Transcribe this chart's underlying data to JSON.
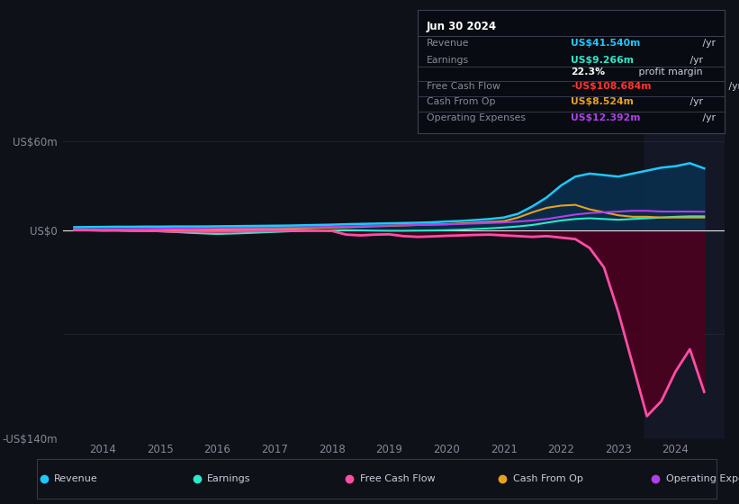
{
  "bg_color": "#0e1117",
  "plot_bg_color": "#0e1117",
  "grid_color": "#2a3040",
  "ylim": [
    -140,
    70
  ],
  "xlim": [
    2013.3,
    2024.85
  ],
  "ytick_vals": [
    -140,
    -70,
    0,
    60
  ],
  "ytick_labels": [
    "-US$140m",
    "",
    "US$0",
    "US$60m"
  ],
  "xtick_vals": [
    2014,
    2015,
    2016,
    2017,
    2018,
    2019,
    2020,
    2021,
    2022,
    2023,
    2024
  ],
  "legend_items": [
    {
      "label": "Revenue",
      "color": "#1ec8ff"
    },
    {
      "label": "Earnings",
      "color": "#2ee8c8"
    },
    {
      "label": "Free Cash Flow",
      "color": "#ff4da6"
    },
    {
      "label": "Cash From Op",
      "color": "#e8a020"
    },
    {
      "label": "Operating Expenses",
      "color": "#b040e8"
    }
  ],
  "table": {
    "title": "Jun 30 2024",
    "rows": [
      {
        "label": "Revenue",
        "value": "US$41.540m",
        "suffix": " /yr",
        "value_color": "#1ec8ff"
      },
      {
        "label": "Earnings",
        "value": "US$9.266m",
        "suffix": " /yr",
        "value_color": "#2ee8c8"
      },
      {
        "label": "",
        "value": "22.3%",
        "suffix": " profit margin",
        "value_color": "#ffffff"
      },
      {
        "label": "Free Cash Flow",
        "value": "-US$108.684m",
        "suffix": " /yr",
        "value_color": "#ff3333"
      },
      {
        "label": "Cash From Op",
        "value": "US$8.524m",
        "suffix": " /yr",
        "value_color": "#e8a020"
      },
      {
        "label": "Operating Expenses",
        "value": "US$12.392m",
        "suffix": " /yr",
        "value_color": "#b040e8"
      }
    ]
  },
  "series": {
    "years": [
      2013.5,
      2013.75,
      2014.0,
      2014.25,
      2014.5,
      2014.75,
      2015.0,
      2015.25,
      2015.5,
      2015.75,
      2016.0,
      2016.25,
      2016.5,
      2016.75,
      2017.0,
      2017.25,
      2017.5,
      2017.75,
      2018.0,
      2018.25,
      2018.5,
      2018.75,
      2019.0,
      2019.25,
      2019.5,
      2019.75,
      2020.0,
      2020.25,
      2020.5,
      2020.75,
      2021.0,
      2021.25,
      2021.5,
      2021.75,
      2022.0,
      2022.25,
      2022.5,
      2022.75,
      2023.0,
      2023.25,
      2023.5,
      2023.75,
      2024.0,
      2024.25,
      2024.5
    ],
    "revenue": [
      2.0,
      2.1,
      2.2,
      2.3,
      2.3,
      2.4,
      2.4,
      2.5,
      2.5,
      2.5,
      2.6,
      2.7,
      2.8,
      2.9,
      3.0,
      3.1,
      3.3,
      3.5,
      3.7,
      4.0,
      4.2,
      4.4,
      4.6,
      4.8,
      5.0,
      5.3,
      5.8,
      6.2,
      6.8,
      7.5,
      8.5,
      11.0,
      16.0,
      22.0,
      30.0,
      36.0,
      38.0,
      37.0,
      36.0,
      38.0,
      40.0,
      42.0,
      43.0,
      45.0,
      41.5
    ],
    "earnings": [
      0.1,
      0.0,
      -0.1,
      -0.2,
      -0.3,
      -0.5,
      -0.8,
      -1.2,
      -1.8,
      -2.2,
      -2.6,
      -2.3,
      -2.0,
      -1.6,
      -1.2,
      -0.8,
      -0.5,
      -0.3,
      -0.1,
      0.0,
      -0.1,
      -0.3,
      -0.4,
      -0.4,
      -0.3,
      -0.2,
      0.0,
      0.3,
      0.8,
      1.2,
      1.8,
      2.5,
      3.5,
      5.0,
      6.5,
      7.5,
      8.0,
      7.5,
      7.0,
      7.5,
      8.0,
      8.5,
      9.0,
      9.3,
      9.3
    ],
    "free_cash_flow": [
      0.0,
      0.0,
      -0.3,
      -0.2,
      -0.5,
      -0.4,
      -0.6,
      -1.0,
      -0.8,
      -0.9,
      -1.0,
      -0.8,
      -0.7,
      -0.6,
      -0.5,
      -0.4,
      -0.3,
      -0.4,
      -0.5,
      -3.0,
      -3.5,
      -3.0,
      -2.8,
      -4.0,
      -4.5,
      -4.2,
      -3.8,
      -3.5,
      -3.2,
      -3.0,
      -3.5,
      -4.0,
      -4.5,
      -4.0,
      -5.0,
      -6.0,
      -12.0,
      -25.0,
      -55.0,
      -90.0,
      -125.0,
      -115.0,
      -95.0,
      -80.0,
      -108.7
    ],
    "cash_from_op": [
      0.0,
      0.1,
      0.2,
      0.1,
      0.2,
      0.2,
      0.3,
      0.3,
      0.3,
      0.3,
      0.4,
      0.5,
      0.6,
      0.7,
      0.8,
      1.0,
      1.2,
      1.5,
      1.8,
      2.0,
      2.3,
      2.6,
      2.9,
      3.2,
      3.5,
      3.8,
      4.0,
      4.5,
      5.0,
      5.5,
      6.0,
      8.5,
      12.0,
      15.0,
      16.5,
      17.0,
      14.0,
      12.0,
      10.0,
      9.0,
      9.0,
      8.5,
      8.5,
      8.5,
      8.5
    ],
    "operating_expenses": [
      0.5,
      0.5,
      0.6,
      0.7,
      0.8,
      0.9,
      1.0,
      1.1,
      1.2,
      1.3,
      1.4,
      1.5,
      1.6,
      1.7,
      1.8,
      1.9,
      2.0,
      2.1,
      2.3,
      2.5,
      2.7,
      2.9,
      3.1,
      3.3,
      3.5,
      3.7,
      3.9,
      4.2,
      4.5,
      4.8,
      5.2,
      5.8,
      6.5,
      7.5,
      9.0,
      10.5,
      11.5,
      12.0,
      12.5,
      13.0,
      13.0,
      12.5,
      12.5,
      12.5,
      12.4
    ]
  },
  "highlight_x": 2023.45,
  "revenue_fill_color": "#0a3050",
  "fcf_fill_color": "#500020"
}
